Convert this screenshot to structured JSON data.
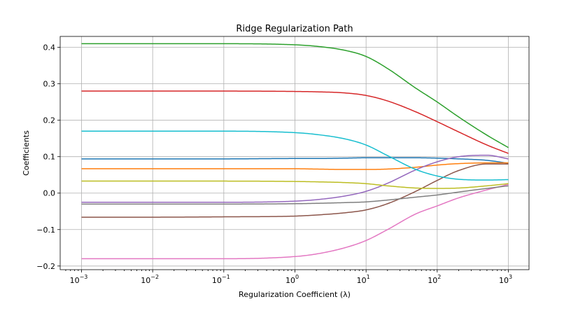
{
  "chart_data": {
    "type": "line",
    "title": "Ridge Regularization Path",
    "xlabel": "Regularization Coefficient (λ)",
    "ylabel": "Coefficients",
    "xscale": "log",
    "xlim": [
      0.001,
      1000
    ],
    "ylim": [
      -0.21,
      0.43
    ],
    "grid": true,
    "xticks": [
      {
        "value": 0.001,
        "base": "10",
        "exp": "−3"
      },
      {
        "value": 0.01,
        "base": "10",
        "exp": "−2"
      },
      {
        "value": 0.1,
        "base": "10",
        "exp": "−1"
      },
      {
        "value": 1,
        "base": "10",
        "exp": "0"
      },
      {
        "value": 10,
        "base": "10",
        "exp": "1"
      },
      {
        "value": 100,
        "base": "10",
        "exp": "2"
      },
      {
        "value": 1000,
        "base": "10",
        "exp": "3"
      }
    ],
    "yticks": [
      {
        "value": 0.4,
        "label": "0.4"
      },
      {
        "value": 0.3,
        "label": "0.3"
      },
      {
        "value": 0.2,
        "label": "0.2"
      },
      {
        "value": 0.1,
        "label": "0.1"
      },
      {
        "value": 0.0,
        "label": "0.0"
      },
      {
        "value": -0.1,
        "label": "−0.1"
      },
      {
        "value": -0.2,
        "label": "−0.2"
      }
    ],
    "x": [
      0.001,
      0.01,
      0.1,
      1,
      2,
      5,
      10,
      20,
      50,
      100,
      200,
      500,
      1000
    ],
    "series": [
      {
        "color": "#1f77b4",
        "values": [
          0.094,
          0.094,
          0.094,
          0.095,
          0.095,
          0.096,
          0.097,
          0.097,
          0.097,
          0.096,
          0.094,
          0.09,
          0.082
        ]
      },
      {
        "color": "#ff7f0e",
        "values": [
          0.067,
          0.067,
          0.067,
          0.067,
          0.066,
          0.065,
          0.065,
          0.066,
          0.071,
          0.077,
          0.081,
          0.083,
          0.083
        ]
      },
      {
        "color": "#2ca02c",
        "values": [
          0.41,
          0.41,
          0.41,
          0.407,
          0.403,
          0.392,
          0.375,
          0.342,
          0.288,
          0.25,
          0.209,
          0.159,
          0.125
        ]
      },
      {
        "color": "#d62728",
        "values": [
          0.28,
          0.28,
          0.28,
          0.279,
          0.278,
          0.275,
          0.268,
          0.253,
          0.223,
          0.196,
          0.168,
          0.132,
          0.109
        ]
      },
      {
        "color": "#9467bd",
        "values": [
          -0.025,
          -0.025,
          -0.025,
          -0.022,
          -0.018,
          -0.008,
          0.005,
          0.027,
          0.064,
          0.086,
          0.1,
          0.104,
          0.094
        ]
      },
      {
        "color": "#8c564b",
        "values": [
          -0.066,
          -0.066,
          -0.065,
          -0.063,
          -0.06,
          -0.054,
          -0.046,
          -0.029,
          0.005,
          0.035,
          0.062,
          0.08,
          0.08
        ]
      },
      {
        "color": "#e377c2",
        "values": [
          -0.18,
          -0.18,
          -0.18,
          -0.174,
          -0.167,
          -0.15,
          -0.13,
          -0.1,
          -0.057,
          -0.035,
          -0.013,
          0.009,
          0.024
        ]
      },
      {
        "color": "#7f7f7f",
        "values": [
          -0.03,
          -0.03,
          -0.03,
          -0.029,
          -0.028,
          -0.026,
          -0.024,
          -0.019,
          -0.011,
          -0.005,
          0.003,
          0.013,
          0.02
        ]
      },
      {
        "color": "#bcbd22",
        "values": [
          0.033,
          0.033,
          0.033,
          0.032,
          0.031,
          0.029,
          0.026,
          0.02,
          0.014,
          0.013,
          0.014,
          0.02,
          0.026
        ]
      },
      {
        "color": "#17becf",
        "values": [
          0.17,
          0.17,
          0.17,
          0.166,
          0.161,
          0.149,
          0.132,
          0.103,
          0.065,
          0.047,
          0.038,
          0.036,
          0.037
        ]
      }
    ]
  }
}
